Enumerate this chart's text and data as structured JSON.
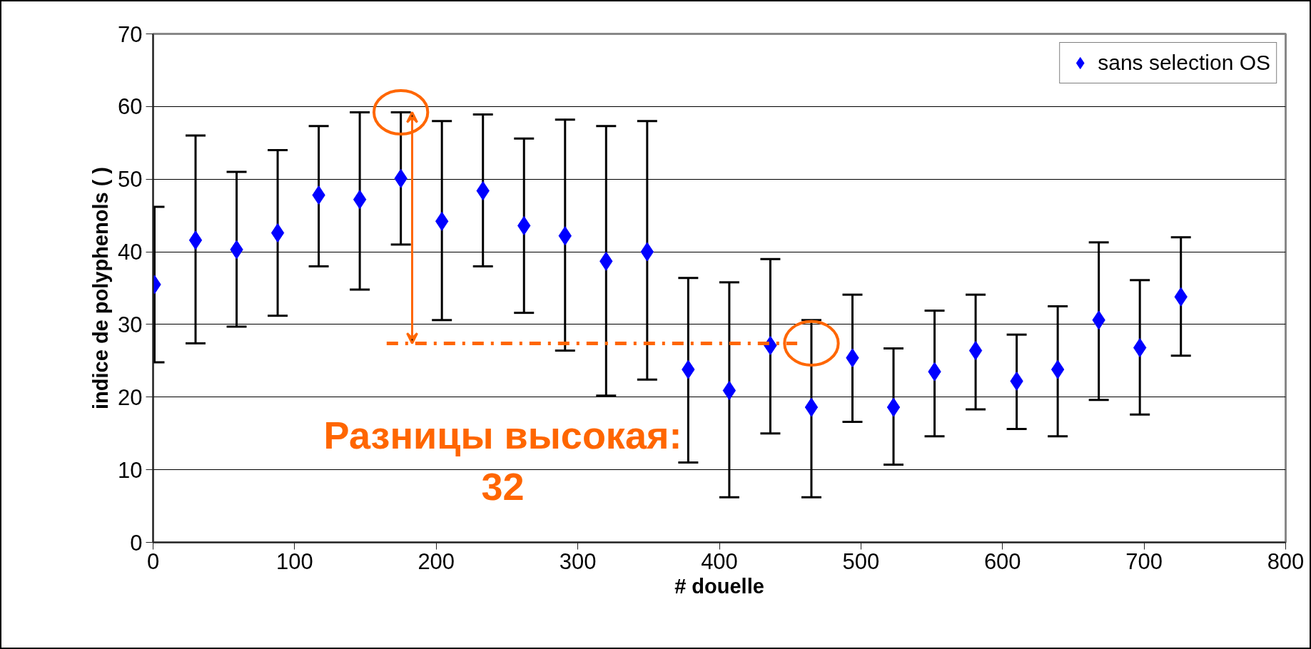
{
  "chart_data": {
    "type": "scatter",
    "xlabel": "# douelle",
    "ylabel": "indice de polyphenols ( )",
    "xlim": [
      0,
      800
    ],
    "xticks": [
      0,
      100,
      200,
      300,
      400,
      500,
      600,
      700,
      800
    ],
    "ylim": [
      0,
      70
    ],
    "yticks": [
      0,
      10,
      20,
      30,
      40,
      50,
      60,
      70
    ],
    "grid": "y",
    "legend": "top right",
    "series": [
      {
        "name": "sans selection OS",
        "color": "#0000ff",
        "marker": "diamond",
        "x": [
          1,
          30,
          59,
          88,
          117,
          146,
          175,
          204,
          233,
          262,
          291,
          320,
          349,
          378,
          407,
          436,
          465,
          494,
          523,
          552,
          581,
          610,
          639,
          668,
          697,
          726
        ],
        "values": [
          35.5,
          41.6,
          40.3,
          42.6,
          47.8,
          47.2,
          50.1,
          44.2,
          48.4,
          43.6,
          42.2,
          38.7,
          40.0,
          23.8,
          20.9,
          27.1,
          18.6,
          25.4,
          18.6,
          23.5,
          26.4,
          22.2,
          23.8,
          30.6,
          26.8,
          33.8
        ],
        "errors": [
          [
            24.8,
            46.2
          ],
          [
            27.4,
            56.0
          ],
          [
            29.7,
            51.0
          ],
          [
            31.2,
            54.0
          ],
          [
            38.0,
            57.3
          ],
          [
            34.8,
            59.2
          ],
          [
            41.0,
            59.2
          ],
          [
            30.6,
            58.0
          ],
          [
            38.0,
            58.9
          ],
          [
            31.6,
            55.6
          ],
          [
            26.4,
            58.2
          ],
          [
            20.2,
            57.3
          ],
          [
            22.4,
            58.0
          ],
          [
            11.0,
            36.4
          ],
          [
            6.2,
            35.8
          ],
          [
            15.0,
            39.0
          ],
          [
            6.2,
            30.6
          ],
          [
            16.6,
            34.1
          ],
          [
            10.7,
            26.7
          ],
          [
            14.6,
            31.9
          ],
          [
            18.3,
            34.1
          ],
          [
            15.6,
            28.6
          ],
          [
            14.6,
            32.5
          ],
          [
            19.6,
            41.3
          ],
          [
            17.6,
            36.1
          ],
          [
            25.7,
            42.0
          ]
        ]
      },
      {
        "type": "line",
        "color": "#ff6600",
        "line_style": "dashed",
        "marker": "none",
        "x": [
          165,
          455
        ],
        "values": [
          27.4,
          27.4
        ]
      }
    ],
    "annotations": [
      "Разницы высокая:\n32"
    ]
  }
}
